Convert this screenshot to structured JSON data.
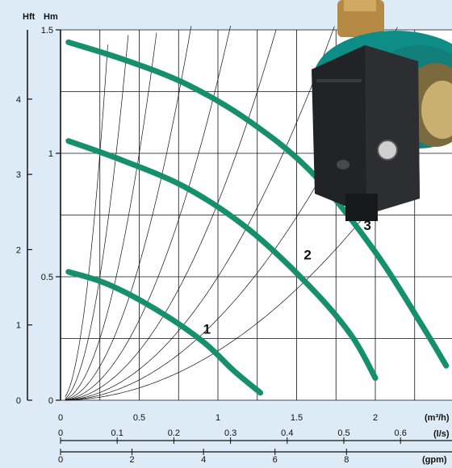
{
  "chart_data": {
    "type": "line",
    "title": "",
    "axes": {
      "y_left_outer": {
        "label": "Hft",
        "ticks": [
          "0",
          "1",
          "2",
          "3",
          "4"
        ],
        "range": [
          0,
          4.92
        ]
      },
      "y_left_inner": {
        "label": "Hm",
        "ticks": [
          "0",
          "0.5",
          "1",
          "1.5"
        ],
        "range": [
          0,
          1.5
        ]
      },
      "x_primary": {
        "unit": "(m³/h)",
        "ticks": [
          "0",
          "0.5",
          "1",
          "1.5",
          "2"
        ],
        "range": [
          0,
          2.5
        ]
      },
      "x_secondary": {
        "unit": "(l/s)",
        "ticks": [
          "0",
          "0.1",
          "0.2",
          "0.3",
          "0.4",
          "0.5",
          "0.6"
        ]
      },
      "x_tertiary": {
        "unit": "(gpm)",
        "ticks": [
          "0",
          "2",
          "4",
          "6",
          "8"
        ]
      }
    },
    "grid": true,
    "series": [
      {
        "name": "1",
        "color": "#16906a",
        "x": [
          0.05,
          0.3,
          0.6,
          0.9,
          1.1,
          1.27
        ],
        "y": [
          0.52,
          0.47,
          0.37,
          0.24,
          0.12,
          0.03
        ]
      },
      {
        "name": "2",
        "color": "#16906a",
        "x": [
          0.05,
          0.4,
          0.8,
          1.2,
          1.6,
          1.85,
          2.0
        ],
        "y": [
          1.05,
          0.97,
          0.86,
          0.69,
          0.45,
          0.26,
          0.09
        ]
      },
      {
        "name": "3",
        "color": "#16906a",
        "x": [
          0.05,
          0.4,
          0.8,
          1.2,
          1.6,
          2.0,
          2.3,
          2.45
        ],
        "y": [
          1.45,
          1.38,
          1.28,
          1.13,
          0.92,
          0.6,
          0.3,
          0.14
        ]
      }
    ],
    "system_curve_k": [
      0.2,
      0.33,
      0.5,
      0.8,
      1.3,
      2.2,
      4.0,
      8.0,
      16.0
    ]
  }
}
